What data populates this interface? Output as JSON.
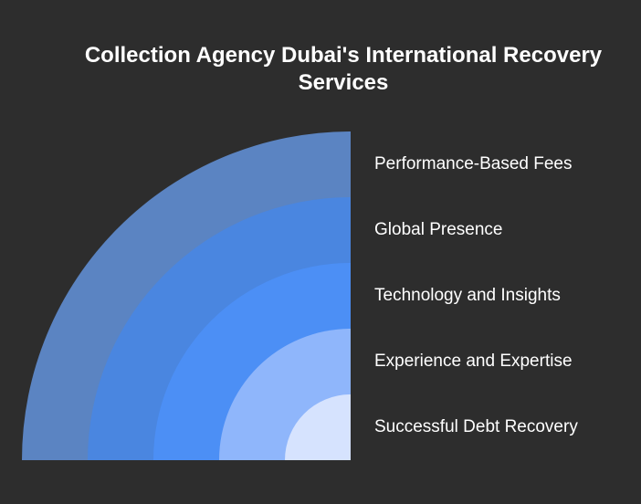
{
  "title": "Collection Agency Dubai's International Recovery Services",
  "layers": [
    {
      "label": "Performance-Based Fees",
      "color": "#5b84c2"
    },
    {
      "label": "Global Presence",
      "color": "#4a86e0"
    },
    {
      "label": "Technology and Insights",
      "color": "#4c8ff5"
    },
    {
      "label": "Experience and Expertise",
      "color": "#8fb6fb"
    },
    {
      "label": "Successful Debt Recovery",
      "color": "#d6e3fe"
    }
  ]
}
